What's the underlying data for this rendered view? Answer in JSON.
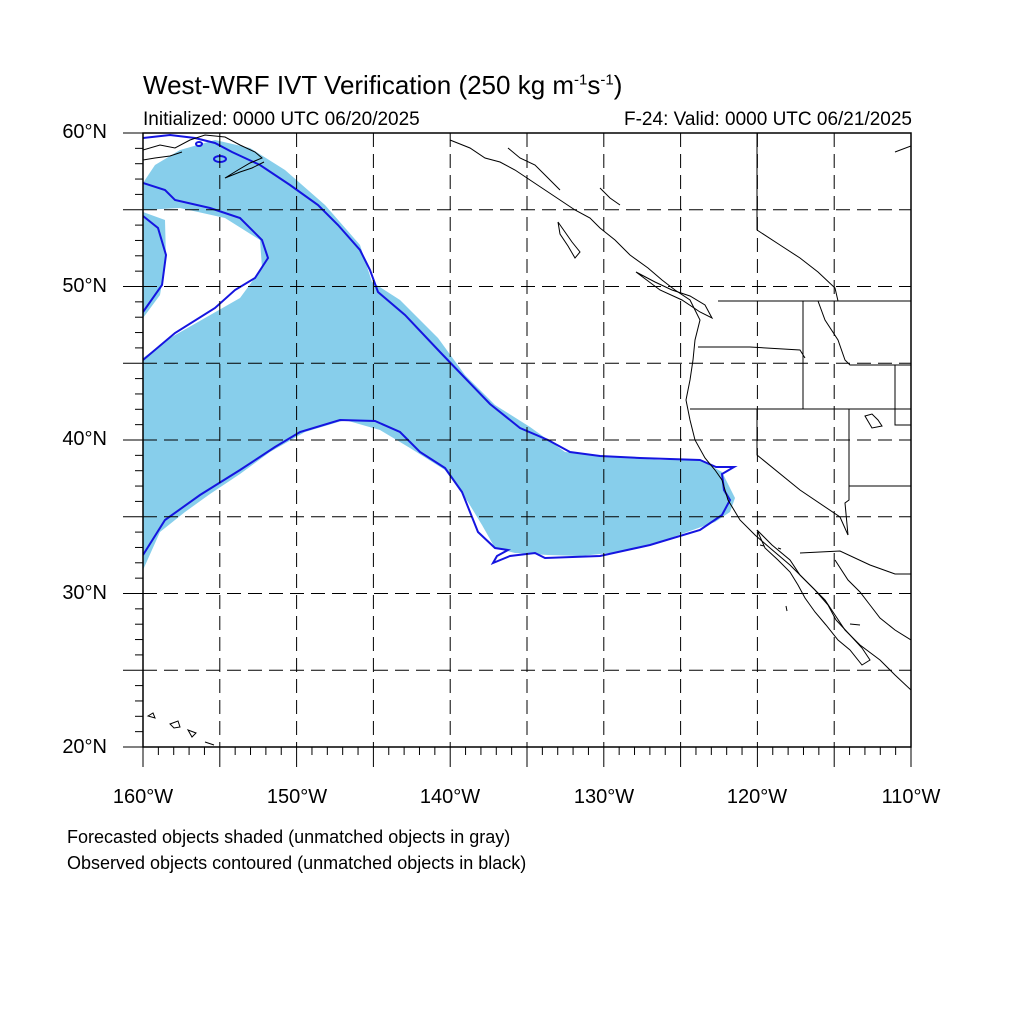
{
  "title": {
    "main": "West-WRF IVT Verification (250 kg m",
    "exp1": "-1",
    "mid": "s",
    "exp2": "-1",
    "close": ")"
  },
  "initialized": "Initialized: 0000 UTC 06/20/2025",
  "valid": "F-24: Valid: 0000 UTC 06/21/2025",
  "lat_labels": [
    "60°N",
    "50°N",
    "40°N",
    "30°N",
    "20°N"
  ],
  "lon_labels": [
    "160°W",
    "150°W",
    "140°W",
    "130°W",
    "120°W",
    "110°W"
  ],
  "footnotes": [
    "Forecasted objects shaded (unmatched objects in gray)",
    "Observed objects contoured (unmatched objects in black)"
  ],
  "map": {
    "lon_range": [
      -160,
      -110
    ],
    "lat_range": [
      20,
      60
    ],
    "forecast_fill_color": "#87CEEB",
    "observed_contour_color": "#1515E0",
    "coastline_color": "#000000",
    "grid": "dashed, every 5 degrees"
  }
}
